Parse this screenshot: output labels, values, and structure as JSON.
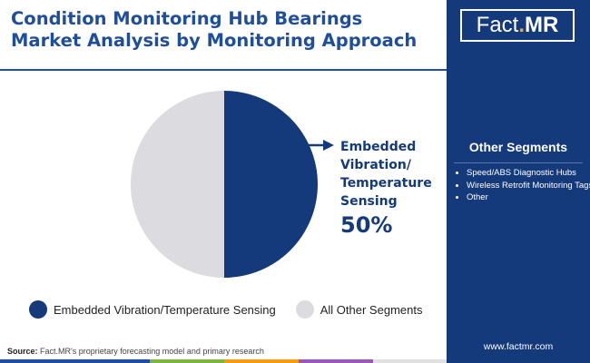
{
  "title": "Condition Monitoring Hub Bearings Market Analysis by Monitoring Approach",
  "colors": {
    "title": "#1f4e9c",
    "primary_segment": "#143a7c",
    "other_segment": "#dcdbdf",
    "sidebar_bg": "#143a7c",
    "bottom_bar": [
      "#1f4e9c",
      "#7cb342",
      "#f39c12",
      "#9b59b6",
      "#e0e0e0"
    ]
  },
  "chart_data": {
    "type": "pie",
    "title": "Condition Monitoring Hub Bearings Market Analysis by Monitoring Approach",
    "slices": [
      {
        "label": "Embedded Vibration/Temperature Sensing",
        "value": 50,
        "color": "#143a7c"
      },
      {
        "label": "All Other Segments",
        "value": 50,
        "color": "#dcdbdf"
      }
    ],
    "legend_position": "bottom",
    "annotation": {
      "label": "Embedded Vibration/ Temperature Sensing",
      "value": "50%"
    }
  },
  "callout": {
    "label": "Embedded Vibration/ Temperature Sensing",
    "value": "50%"
  },
  "legend": {
    "items": [
      {
        "label": "Embedded Vibration/Temperature Sensing",
        "color": "#143a7c"
      },
      {
        "label": "All Other Segments",
        "color": "#dcdbdf"
      }
    ]
  },
  "source": {
    "prefix": "Source:",
    "text": "Fact.MR's proprietary forecasting model and primary research"
  },
  "sidebar": {
    "logo": {
      "main": "Fact",
      "dot": ".",
      "suffix": "MR"
    },
    "heading": "Other Segments",
    "items": [
      "Speed/ABS Diagnostic Hubs",
      "Wireless Retrofit Monitoring Tags",
      "Other"
    ],
    "website": "www.factmr.com"
  }
}
